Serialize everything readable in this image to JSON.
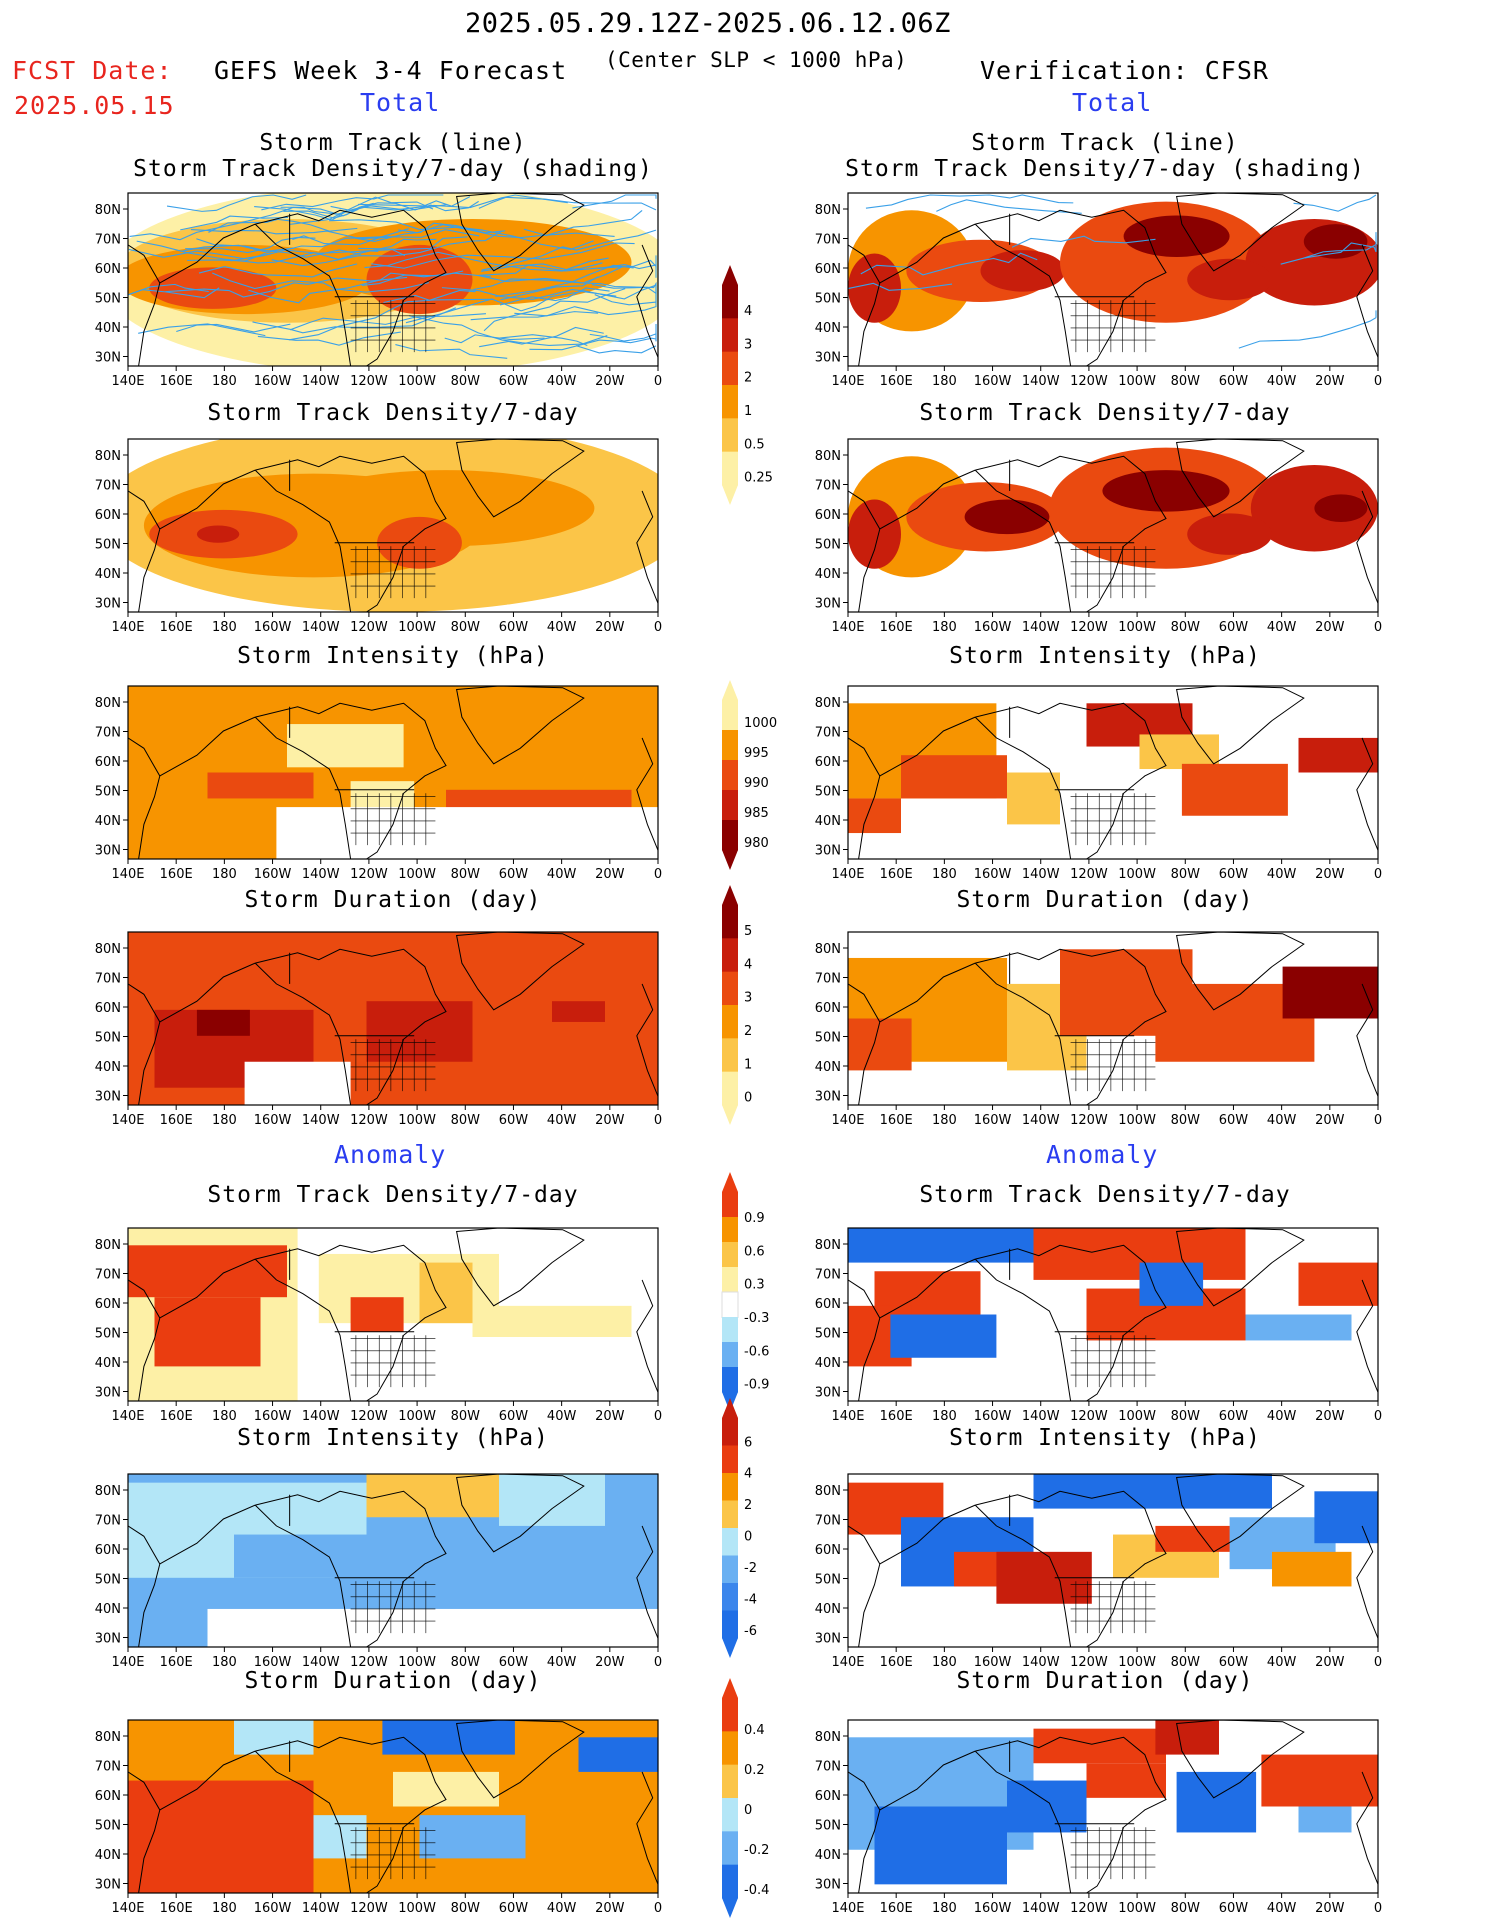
{
  "header": {
    "period": "2025.05.29.12Z-2025.06.12.06Z",
    "fcst_label": "FCST Date:",
    "fcst_date": "2025.05.15",
    "left_title": "GEFS Week 3-4 Forecast",
    "subtitle": "(Center SLP < 1000 hPa)",
    "right_title": "Verification: CFSR",
    "total_label": "Total",
    "anomaly_label": "Anomaly"
  },
  "panel_titles": {
    "track_line": "Storm Track (line)",
    "track_shading": "Storm Track Density/7-day (shading)",
    "density": "Storm Track Density/7-day",
    "intensity": "Storm Intensity (hPa)",
    "duration": "Storm Duration (day)"
  },
  "map_axes": {
    "x_ticks": [
      "140E",
      "160E",
      "180",
      "160W",
      "140W",
      "120W",
      "100W",
      "80W",
      "60W",
      "40W",
      "20W",
      "0"
    ],
    "y_ticks": [
      "80N",
      "70N",
      "60N",
      "50N",
      "40N",
      "30N"
    ]
  },
  "colorbars": [
    {
      "name": "density",
      "labels": [
        "4",
        "3",
        "2",
        "1",
        "0.5",
        "0.25"
      ],
      "colors": [
        "#8a0000",
        "#c81e0c",
        "#ea4a10",
        "#f79400",
        "#fbc548",
        "#fdf0a6"
      ]
    },
    {
      "name": "intensity",
      "labels": [
        "1000",
        "995",
        "990",
        "985",
        "980"
      ],
      "colors": [
        "#fdf0a6",
        "#f79400",
        "#ea4a10",
        "#c81e0c",
        "#8a0000"
      ]
    },
    {
      "name": "duration",
      "labels": [
        "5",
        "4",
        "3",
        "2",
        "1",
        "0"
      ],
      "colors": [
        "#8a0000",
        "#c81e0c",
        "#ea4a10",
        "#f79400",
        "#fbc548",
        "#fdf0a6"
      ]
    },
    {
      "name": "density_anomaly",
      "labels": [
        "0.9",
        "0.6",
        "0.3",
        "-0.3",
        "-0.6",
        "-0.9"
      ],
      "colors": [
        "#ea3d10",
        "#f79400",
        "#fbc548",
        "#fdf0a6",
        "#ffffff",
        "#b3e6f7",
        "#6ab0f2",
        "#1f6ee6"
      ]
    },
    {
      "name": "intensity_anomaly",
      "labels": [
        "6",
        "4",
        "2",
        "0",
        "-2",
        "-4",
        "-6"
      ],
      "colors": [
        "#c81e0c",
        "#ea3d10",
        "#f79400",
        "#fbc548",
        "#b3e6f7",
        "#6ab0f2",
        "#3b86ec",
        "#1f6ee6"
      ]
    },
    {
      "name": "duration_anomaly",
      "labels": [
        "0.4",
        "0.2",
        "0",
        "-0.2",
        "-0.4"
      ],
      "colors": [
        "#ea3d10",
        "#f79400",
        "#fbc548",
        "#b3e6f7",
        "#6ab0f2",
        "#1f6ee6"
      ]
    }
  ],
  "chart_data": {
    "type": "heatmap",
    "layout": "7 rows x 2 columns of gridded storm-track statistics maps",
    "domain": {
      "lon": "140E to 0",
      "lat": "25N to 85N"
    },
    "columns": [
      "GEFS Week 3-4 Forecast",
      "Verification: CFSR"
    ],
    "rows": [
      "Storm Track (line) / Storm Track Density/7-day (shading)",
      "Storm Track Density/7-day",
      "Storm Intensity (hPa)",
      "Storm Duration (day)",
      "Storm Track Density/7-day (anomaly)",
      "Storm Intensity (hPa) (anomaly)",
      "Storm Duration (day) (anomaly)"
    ]
  }
}
